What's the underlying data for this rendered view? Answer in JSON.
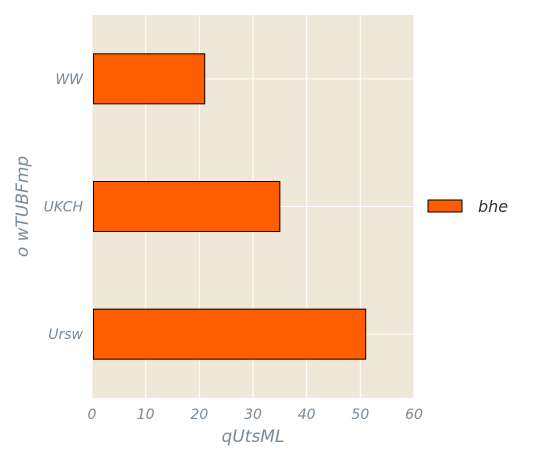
{
  "chart_data": {
    "type": "bar",
    "orientation": "horizontal",
    "categories": [
      "WW",
      "UKCH",
      "Ursw"
    ],
    "series": [
      {
        "name": "bhe",
        "values": [
          21,
          35,
          51
        ]
      }
    ],
    "xlabel": "qUtsML",
    "ylabel": "o wTUBFmp",
    "xlim": [
      0,
      60
    ],
    "xticks": [
      "0",
      "10",
      "20",
      "30",
      "40",
      "50",
      "60"
    ],
    "grid": true,
    "legend_position": "right",
    "colors": {
      "bar_fill": "#ff5e00",
      "bar_edge": "#000000",
      "plot_background": "#efe8d8",
      "grid": "#ffffff",
      "text": "#7a8a96"
    }
  }
}
